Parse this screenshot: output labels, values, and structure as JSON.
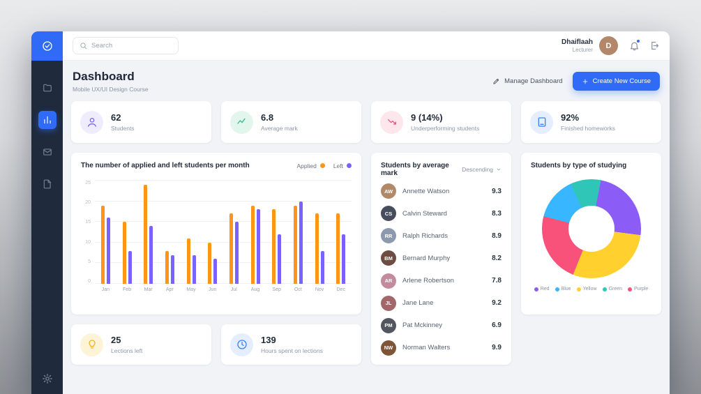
{
  "sidebar": {
    "items": [
      {
        "id": "projects",
        "icon": "folder-icon",
        "active": false
      },
      {
        "id": "dashboard",
        "icon": "chart-icon",
        "active": true
      },
      {
        "id": "messages",
        "icon": "mail-icon",
        "active": false
      },
      {
        "id": "documents",
        "icon": "file-icon",
        "active": false
      }
    ],
    "bottom_item": {
      "id": "settings",
      "icon": "gear-icon"
    }
  },
  "topbar": {
    "search_placeholder": "Search",
    "user": {
      "name": "Dhaiflaah",
      "role": "Lecturer",
      "initials": "D",
      "avatar_color": "#b3876a"
    },
    "has_notification": true
  },
  "header": {
    "title": "Dashboard",
    "subtitle": "Mobile UX/UI Design Course",
    "manage_button": "Manage Dashboard",
    "create_button": "Create New Course"
  },
  "stats": [
    {
      "value": "62",
      "label": "Students",
      "icon": "user-icon",
      "color": "#7b61ff",
      "bg": "#efecfe"
    },
    {
      "value": "6.8",
      "label": "Average mark",
      "icon": "trend-icon",
      "color": "#2fbf8f",
      "bg": "#e2f6ee"
    },
    {
      "value": "9 (14%)",
      "label": "Underperforming students",
      "icon": "down-arrow-icon",
      "color": "#f5537a",
      "bg": "#fde7ed"
    },
    {
      "value": "92%",
      "label": "Finished homeworks",
      "icon": "book-icon",
      "color": "#3b82f6",
      "bg": "#e4eefe"
    }
  ],
  "bottom_stats": [
    {
      "value": "25",
      "label": "Lections left",
      "icon": "bulb-icon",
      "color": "#f0b429",
      "bg": "#fdf3d7"
    },
    {
      "value": "139",
      "label": "Hours spent on lections",
      "icon": "clock-icon",
      "color": "#3b82f6",
      "bg": "#e4eefe"
    }
  ],
  "students": {
    "title": "Students by average mark",
    "sort_label": "Descending",
    "rows": [
      {
        "name": "Annette Watson",
        "mark": "9.3",
        "avatar_color": "#b08968"
      },
      {
        "name": "Calvin Steward",
        "mark": "8.3",
        "avatar_color": "#474d5d"
      },
      {
        "name": "Ralph Richards",
        "mark": "8.9",
        "avatar_color": "#8d99ae"
      },
      {
        "name": "Bernard Murphy",
        "mark": "8.2",
        "avatar_color": "#6d4c41"
      },
      {
        "name": "Arlene Robertson",
        "mark": "7.8",
        "avatar_color": "#c48b9f"
      },
      {
        "name": "Jane Lane",
        "mark": "9.2",
        "avatar_color": "#a26769"
      },
      {
        "name": "Pat Mckinney",
        "mark": "6.9",
        "avatar_color": "#52575f"
      },
      {
        "name": "Norman Walters",
        "mark": "9.9",
        "avatar_color": "#7f5539"
      }
    ]
  },
  "chart_data": [
    {
      "type": "bar",
      "title": "The number of applied and left students per month",
      "categories": [
        "Jan",
        "Feb",
        "Mar",
        "Apr",
        "May",
        "Jun",
        "Jul",
        "Aug",
        "Sep",
        "Oct",
        "Nov",
        "Dec"
      ],
      "series": [
        {
          "name": "Applied",
          "color": "#ff9517",
          "values": [
            19,
            15,
            24,
            8,
            11,
            10,
            17,
            19,
            18,
            19,
            17,
            17
          ]
        },
        {
          "name": "Left",
          "color": "#7b61ff",
          "values": [
            16,
            8,
            14,
            7,
            7,
            6,
            15,
            18,
            12,
            20,
            8,
            12
          ]
        }
      ],
      "ylim": [
        0,
        25
      ],
      "yticks": [
        0,
        5,
        10,
        15,
        20,
        25
      ],
      "grid": true,
      "legend_position": "top-right"
    },
    {
      "type": "pie",
      "donut": true,
      "title": "Students by type of studying",
      "start_angle": -25,
      "segments": [
        {
          "label": "Green",
          "color": "#2fc6b7",
          "value": 10
        },
        {
          "label": "Red",
          "color": "#8b5cf6",
          "value": 24
        },
        {
          "label": "Yellow",
          "color": "#ffd02e",
          "value": 29
        },
        {
          "label": "Purple",
          "color": "#f9527a",
          "value": 23
        },
        {
          "label": "Blue",
          "color": "#38b6ff",
          "value": 14
        }
      ],
      "legend": [
        {
          "label": "Red",
          "color": "#8b5cf6"
        },
        {
          "label": "Blue",
          "color": "#38b6ff"
        },
        {
          "label": "Yellow",
          "color": "#ffd02e"
        },
        {
          "label": "Green",
          "color": "#2fc6b7"
        },
        {
          "label": "Purple",
          "color": "#f9527a"
        }
      ],
      "legend_position": "bottom"
    }
  ]
}
